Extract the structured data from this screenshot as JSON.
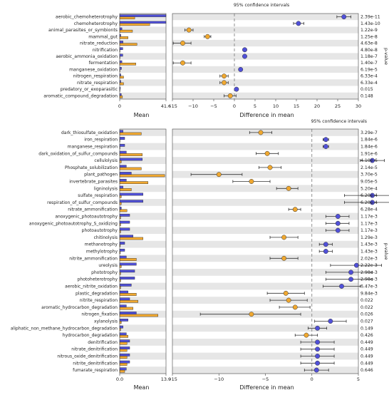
{
  "chart_data": [
    {
      "type": "extended_error_bar",
      "panel": "top",
      "ci_label": "95% confidence intervals",
      "xlabel_left": "Mean",
      "xlabel_right": "Difference in mean",
      "pvalue_label": "p-value",
      "mean_xlim": [
        0,
        41.6
      ],
      "mean_ticks": [
        "0",
        "41.6"
      ],
      "diff_xlim": [
        -15,
        30
      ],
      "diff_ticks": [
        "−15",
        "−10",
        "−5",
        "0",
        "5",
        "10",
        "15",
        "20",
        "25",
        "30"
      ],
      "colors": {
        "group1": "#5050d8",
        "group2": "#f0a830"
      },
      "rows": [
        {
          "label": "aerobic_chemoheterotrophy",
          "m1": 41.6,
          "m2": 13.5,
          "diff": 26.5,
          "lo": 24.8,
          "hi": 28.2,
          "p": "2.39e-11"
        },
        {
          "label": "chemoheterotrophy",
          "m1": 41.6,
          "m2": 27.0,
          "diff": 15.5,
          "lo": 14.3,
          "hi": 16.8,
          "p": "1.43e-10"
        },
        {
          "label": "animal_parasites_or_symbionts",
          "m1": 2.0,
          "m2": 11.5,
          "diff": -11.0,
          "lo": -12.0,
          "hi": -10.0,
          "p": "1.22e-9"
        },
        {
          "label": "mammal_gut",
          "m1": 1.0,
          "m2": 7.5,
          "diff": -6.5,
          "lo": -7.3,
          "hi": -5.7,
          "p": "1.25e-8"
        },
        {
          "label": "nitrate_reduction",
          "m1": 3.0,
          "m2": 15.5,
          "diff": -12.5,
          "lo": -14.8,
          "hi": -10.5,
          "p": "4.63e-8"
        },
        {
          "label": "nitrification",
          "m1": 2.8,
          "m2": 0.2,
          "diff": 2.5,
          "lo": 2.1,
          "hi": 2.9,
          "p": "4.80e-8"
        },
        {
          "label": "aerobic_ammonia_oxidation",
          "m1": 2.8,
          "m2": 0.2,
          "diff": 2.5,
          "lo": 2.1,
          "hi": 2.9,
          "p": "1.18e-7"
        },
        {
          "label": "fermentation",
          "m1": 2.0,
          "m2": 14.5,
          "diff": -12.5,
          "lo": -14.8,
          "hi": -10.5,
          "p": "1.40e-7"
        },
        {
          "label": "manganese_oxidation",
          "m1": 1.6,
          "m2": 0.1,
          "diff": 1.5,
          "lo": 1.1,
          "hi": 1.9,
          "p": "6.19e-5"
        },
        {
          "label": "nitrogen_respiration",
          "m1": 1.0,
          "m2": 3.5,
          "diff": -2.5,
          "lo": -3.5,
          "hi": -1.5,
          "p": "6.33e-4"
        },
        {
          "label": "nitrate_respiration",
          "m1": 1.0,
          "m2": 3.5,
          "diff": -2.5,
          "lo": -3.5,
          "hi": -1.5,
          "p": "6.33e-4"
        },
        {
          "label": "predatory_or_exoparasitic",
          "m1": 0.6,
          "m2": 0.1,
          "diff": 0.5,
          "lo": 0.1,
          "hi": 0.9,
          "p": "0.015"
        },
        {
          "label": "aromatic_compound_degradation",
          "m1": 1.5,
          "m2": 2.5,
          "diff": -1.0,
          "lo": -2.5,
          "hi": 0.4,
          "p": "0.148"
        }
      ]
    },
    {
      "type": "extended_error_bar",
      "panel": "bottom",
      "ci_label": "95% confidence intervals",
      "xlabel_left": "Mean",
      "xlabel_right": "Difference in mean",
      "pvalue_label": "p-value",
      "mean_xlim": [
        0,
        13.9
      ],
      "mean_ticks": [
        "0.0",
        "13.9"
      ],
      "diff_xlim": [
        -15,
        5
      ],
      "diff_ticks": [
        "−15",
        "−10",
        "−5",
        "0",
        "5"
      ],
      "colors": {
        "group1": "#5050d8",
        "group2": "#f0a830"
      },
      "rows": [
        {
          "label": "dark_thiosulfate_oxidation",
          "m1": 1.0,
          "m2": 6.5,
          "diff": -5.5,
          "lo": -6.7,
          "hi": -4.3,
          "p": "3.29e-7"
        },
        {
          "label": "iron_respiration",
          "m1": 1.5,
          "m2": 0.1,
          "diff": 1.5,
          "lo": 1.2,
          "hi": 1.8,
          "p": "1.84e-6"
        },
        {
          "label": "manganese_respiration",
          "m1": 1.5,
          "m2": 0.1,
          "diff": 1.5,
          "lo": 1.2,
          "hi": 1.8,
          "p": "1.84e-6"
        },
        {
          "label": "dark_oxidation_of_sulfur_compounds",
          "m1": 2.0,
          "m2": 6.8,
          "diff": -4.8,
          "lo": -6.0,
          "hi": -3.6,
          "p": "1.91e-6"
        },
        {
          "label": "cellulolysis",
          "m1": 6.8,
          "m2": 0.5,
          "diff": 6.5,
          "lo": 5.2,
          "hi": 7.8,
          "p": "4.10e-6"
        },
        {
          "label": "Phosphate_solubilization",
          "m1": 2.0,
          "m2": 6.5,
          "diff": -4.5,
          "lo": -5.7,
          "hi": -3.3,
          "p": "2.14e-5"
        },
        {
          "label": "plant_pathogen",
          "m1": 3.5,
          "m2": 13.5,
          "diff": -10.0,
          "lo": -13.0,
          "hi": -7.5,
          "p": "3.70e-5"
        },
        {
          "label": "invertebrate_parasites",
          "m1": 2.0,
          "m2": 8.5,
          "diff": -6.5,
          "lo": -8.5,
          "hi": -4.5,
          "p": "9.05e-5"
        },
        {
          "label": "ligninolysis",
          "m1": 1.0,
          "m2": 3.5,
          "diff": -2.5,
          "lo": -3.8,
          "hi": -1.5,
          "p": "5.20e-4"
        },
        {
          "label": "sulfate_respiration",
          "m1": 7.0,
          "m2": 0.5,
          "diff": 6.5,
          "lo": 3.5,
          "hi": 9.5,
          "p": "6.20e-4"
        },
        {
          "label": "respiration_of_sulfur_compounds",
          "m1": 7.0,
          "m2": 0.5,
          "diff": 6.5,
          "lo": 3.5,
          "hi": 9.5,
          "p": "6.20e-4"
        },
        {
          "label": "nitrate_ammonification",
          "m1": 0.5,
          "m2": 2.2,
          "diff": -1.8,
          "lo": -2.5,
          "hi": -1.2,
          "p": "6.28e-4"
        },
        {
          "label": "anoxygenic_photoautotrophy",
          "m1": 3.0,
          "m2": 0.3,
          "diff": 2.8,
          "lo": 1.5,
          "hi": 4.0,
          "p": "1.17e-3"
        },
        {
          "label": "anoxygenic_photoautotrophy_S_oxidizing",
          "m1": 3.0,
          "m2": 0.3,
          "diff": 2.8,
          "lo": 1.5,
          "hi": 4.0,
          "p": "1.17e-3"
        },
        {
          "label": "photoautotrophy",
          "m1": 3.0,
          "m2": 0.3,
          "diff": 2.8,
          "lo": 1.5,
          "hi": 4.0,
          "p": "1.17e-3"
        },
        {
          "label": "chitinolysis",
          "m1": 4.0,
          "m2": 7.0,
          "diff": -3.0,
          "lo": -4.5,
          "hi": -1.5,
          "p": "1.29e-3"
        },
        {
          "label": "methanotrophy",
          "m1": 1.5,
          "m2": 0.2,
          "diff": 1.5,
          "lo": 0.8,
          "hi": 2.2,
          "p": "1.43e-3"
        },
        {
          "label": "methylotrophy",
          "m1": 1.5,
          "m2": 0.2,
          "diff": 1.5,
          "lo": 0.8,
          "hi": 2.2,
          "p": "1.43e-3"
        },
        {
          "label": "nitrite_ammonification",
          "m1": 2.0,
          "m2": 5.0,
          "diff": -3.0,
          "lo": -4.5,
          "hi": -1.5,
          "p": "2.02e-3"
        },
        {
          "label": "ureolysis",
          "m1": 5.0,
          "m2": 0.5,
          "diff": 4.8,
          "lo": 2.0,
          "hi": 7.5,
          "p": "2.22e-3"
        },
        {
          "label": "phototrophy",
          "m1": 4.5,
          "m2": 0.3,
          "diff": 4.2,
          "lo": 1.5,
          "hi": 6.5,
          "p": "2.98e-3"
        },
        {
          "label": "photoheterotrophy",
          "m1": 4.5,
          "m2": 0.3,
          "diff": 4.2,
          "lo": 1.5,
          "hi": 6.5,
          "p": "2.98e-3"
        },
        {
          "label": "aerobic_nitrite_oxidation",
          "m1": 3.5,
          "m2": 0.3,
          "diff": 3.2,
          "lo": 1.2,
          "hi": 5.2,
          "p": "6.47e-3"
        },
        {
          "label": "plastic_degradation",
          "m1": 2.5,
          "m2": 5.0,
          "diff": -2.8,
          "lo": -4.8,
          "hi": -0.8,
          "p": "9.84e-3"
        },
        {
          "label": "nitrite_respiration",
          "m1": 3.0,
          "m2": 5.5,
          "diff": -2.5,
          "lo": -4.5,
          "hi": -0.5,
          "p": "0.022"
        },
        {
          "label": "aromatic_hydrocarbon_degradation",
          "m1": 2.0,
          "m2": 4.0,
          "diff": -1.8,
          "lo": -3.5,
          "hi": -0.2,
          "p": "0.022"
        },
        {
          "label": "nitrogen_fixation",
          "m1": 5.0,
          "m2": 11.5,
          "diff": -6.5,
          "lo": -12.0,
          "hi": -1.2,
          "p": "0.026"
        },
        {
          "label": "xylanolysis",
          "m1": 2.5,
          "m2": 0.5,
          "diff": 2.0,
          "lo": 0.3,
          "hi": 3.7,
          "p": "0.027"
        },
        {
          "label": "aliphatic_non_methane_hydrocarbon_degradation",
          "m1": 1.0,
          "m2": 0.3,
          "diff": 0.6,
          "lo": -0.4,
          "hi": 1.6,
          "p": "0.149"
        },
        {
          "label": "hydrocarbon_degradation",
          "m1": 2.0,
          "m2": 2.5,
          "diff": -0.6,
          "lo": -1.8,
          "hi": 0.6,
          "p": "0.426"
        },
        {
          "label": "denitrification",
          "m1": 3.0,
          "m2": 2.2,
          "diff": 0.6,
          "lo": -1.2,
          "hi": 2.4,
          "p": "0.449"
        },
        {
          "label": "nitrate_denitrification",
          "m1": 3.0,
          "m2": 2.2,
          "diff": 0.6,
          "lo": -1.2,
          "hi": 2.4,
          "p": "0.449"
        },
        {
          "label": "nitrous_oxide_denitrification",
          "m1": 3.0,
          "m2": 2.2,
          "diff": 0.6,
          "lo": -1.2,
          "hi": 2.4,
          "p": "0.449"
        },
        {
          "label": "nitrite_denitrification",
          "m1": 3.0,
          "m2": 2.2,
          "diff": 0.6,
          "lo": -1.2,
          "hi": 2.4,
          "p": "0.449"
        },
        {
          "label": "fumarate_respiration",
          "m1": 2.0,
          "m2": 1.5,
          "diff": 0.5,
          "lo": -0.8,
          "hi": 1.8,
          "p": "0.646"
        }
      ]
    }
  ]
}
